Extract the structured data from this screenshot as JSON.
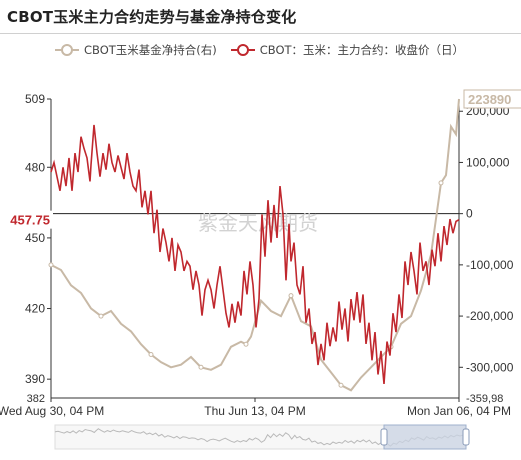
{
  "title": "CBOT玉米主力合约走势与基金净持仓变化",
  "legend": [
    {
      "label": "CBOT玉米基金净持合(右)",
      "color": "#c8b9a6"
    },
    {
      "label": "CBOT：玉米：主力合约：收盘价（日）",
      "color": "#c0282e"
    }
  ],
  "watermark": "紫金天风期货",
  "colors": {
    "price": "#c0282e",
    "position": "#c8b9a6",
    "zoom_fill": "#c9d3e3",
    "zoom_border": "#9fb0cc"
  },
  "chart_data": {
    "type": "line",
    "x_start": "Wed Aug 30, 04 PM",
    "x_ticks": [
      "Wed Aug 30, 04 PM",
      "Thu Jun 13, 04 PM",
      "Mon Jan 06, 04 PM"
    ],
    "y_left": {
      "ticks": [
        390,
        420,
        450,
        480,
        509
      ],
      "min_label": "382",
      "range": [
        382,
        509
      ]
    },
    "y_right": {
      "ticks": [
        "200,000",
        "100,000",
        "0",
        "-100,000",
        "-200,000",
        "-300,000"
      ],
      "tick_values": [
        200000,
        100000,
        0,
        -100000,
        -200000,
        -300000
      ],
      "min_label": "-359,98",
      "range": [
        -359980,
        223890
      ]
    },
    "price_marker": "457.75",
    "position_marker": "223890",
    "series": [
      {
        "name": "CBOT：玉米：主力合约：收盘价（日）",
        "axis": "left",
        "x": [
          0,
          3,
          6,
          9,
          12,
          15,
          18,
          21,
          24,
          27,
          30,
          33,
          36,
          39,
          40,
          43,
          46,
          49,
          52,
          55,
          58,
          61,
          64,
          67,
          70,
          73,
          76,
          79,
          82,
          85,
          88,
          91,
          94,
          97,
          100,
          103,
          106,
          109,
          112,
          115,
          118,
          121,
          124,
          127,
          130,
          133,
          136,
          139,
          142,
          145,
          148,
          151,
          154,
          157,
          160,
          163,
          166,
          169,
          172,
          175,
          178,
          181,
          184,
          187,
          190,
          193,
          196,
          199,
          202,
          205,
          208,
          211,
          214,
          217,
          220,
          223,
          226,
          229,
          232,
          235,
          238,
          240,
          243,
          246,
          249,
          252,
          255,
          258,
          261,
          264,
          267,
          270,
          273,
          276,
          279,
          282,
          285,
          288,
          291,
          294,
          297,
          300,
          303,
          306,
          309,
          312,
          315,
          318,
          321,
          324,
          327,
          330,
          333,
          336,
          339,
          342,
          345,
          348,
          351,
          354,
          357,
          360,
          363,
          366,
          369,
          372,
          375,
          378,
          381,
          384,
          387,
          390,
          393,
          396,
          399,
          402,
          405,
          408
        ],
        "values": [
          478,
          482,
          476,
          470,
          480,
          472,
          484,
          470,
          486,
          478,
          493,
          488,
          484,
          474,
          481,
          498,
          486,
          476,
          486,
          479,
          490,
          482,
          478,
          485,
          480,
          475,
          486,
          478,
          472,
          470,
          479,
          463,
          470,
          460,
          470,
          452,
          462,
          444,
          454,
          448,
          440,
          450,
          436,
          447,
          444,
          436,
          440,
          438,
          428,
          436,
          430,
          417,
          428,
          432,
          428,
          420,
          430,
          438,
          428,
          418,
          412,
          422,
          414,
          423,
          417,
          436,
          426,
          440,
          430,
          412,
          424,
          460,
          442,
          466,
          448,
          464,
          450,
          472,
          460,
          432,
          456,
          440,
          448,
          430,
          426,
          438,
          414,
          420,
          405,
          410,
          396,
          405,
          398,
          414,
          404,
          412,
          406,
          423,
          411,
          420,
          406,
          424,
          415,
          427,
          414,
          426,
          405,
          414,
          398,
          410,
          392,
          402,
          388,
          406,
          400,
          418,
          410,
          426,
          416,
          440,
          430,
          444,
          436,
          426,
          448,
          436,
          440,
          430,
          445,
          438,
          452,
          440,
          455,
          447,
          458,
          452,
          457,
          457.75
        ]
      },
      {
        "name": "CBOT玉米基金净持合(右)",
        "axis": "right",
        "x": [
          0,
          10,
          20,
          30,
          40,
          50,
          60,
          70,
          80,
          90,
          100,
          110,
          120,
          130,
          140,
          150,
          160,
          170,
          180,
          190,
          195,
          200,
          210,
          220,
          230,
          240,
          250,
          260,
          270,
          280,
          290,
          300,
          310,
          320,
          330,
          340,
          350,
          360,
          370,
          380,
          390,
          395,
          400,
          405,
          408
        ],
        "values": [
          -100000,
          -110000,
          -140000,
          -155000,
          -185000,
          -200000,
          -190000,
          -215000,
          -230000,
          -255000,
          -275000,
          -290000,
          -300000,
          -295000,
          -280000,
          -300000,
          -305000,
          -295000,
          -260000,
          -250000,
          -255000,
          -240000,
          -170000,
          -190000,
          -200000,
          -160000,
          -210000,
          -220000,
          -285000,
          -310000,
          -335000,
          -345000,
          -320000,
          -300000,
          -280000,
          -260000,
          -215000,
          -200000,
          -150000,
          -80000,
          60000,
          75000,
          170000,
          155000,
          223890
        ]
      }
    ],
    "grid": false,
    "legend_position": "top-left"
  }
}
